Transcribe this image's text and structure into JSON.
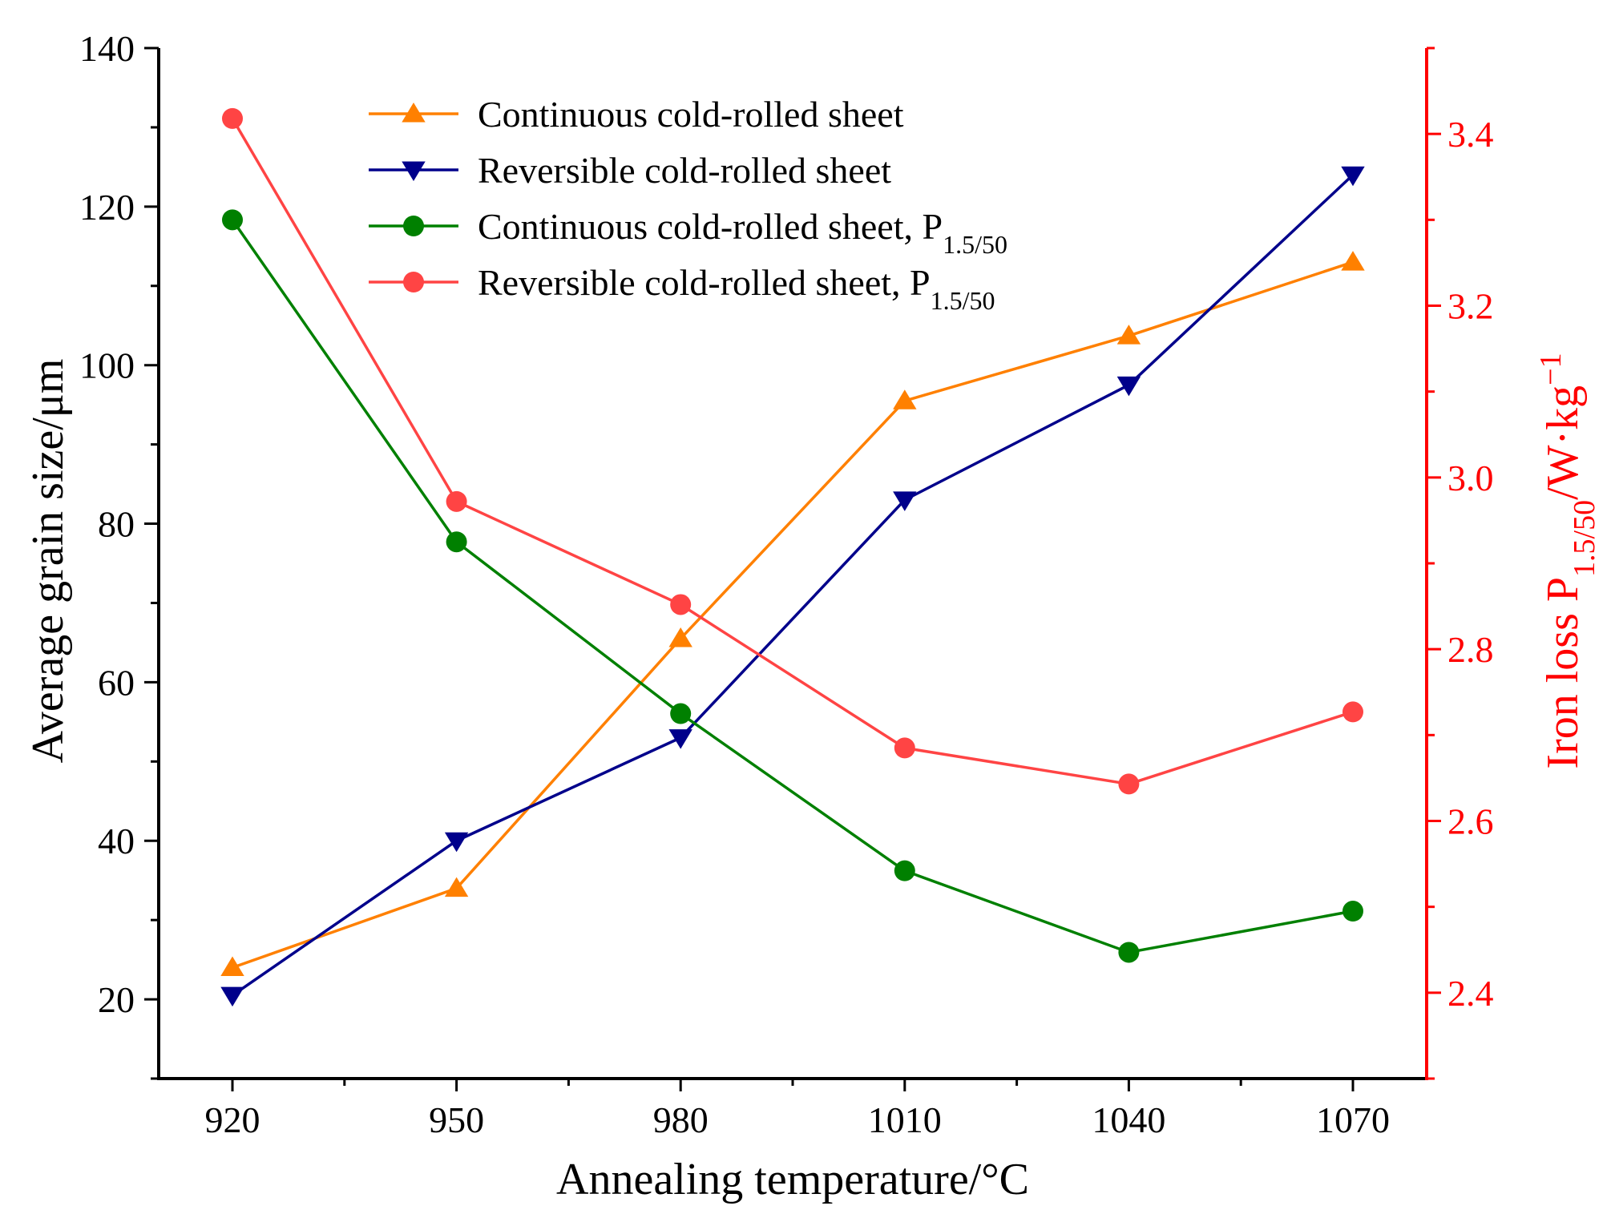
{
  "chart_data": {
    "type": "line",
    "x": [
      920,
      950,
      980,
      1010,
      1040,
      1070
    ],
    "xlabel": "Annealing temperature/°C",
    "ylabel_left": "Average grain size/μm",
    "ylabel_right": {
      "prefix": "Iron loss P",
      "sub": "1.5/50",
      "mid": "/W·kg",
      "sup": "−1"
    },
    "ylim_left": [
      10,
      140
    ],
    "ylim_right": [
      2.3,
      3.5
    ],
    "left_ticks": [
      20,
      40,
      60,
      80,
      100,
      120,
      140
    ],
    "right_ticks": [
      2.4,
      2.6,
      2.8,
      3.0,
      3.2,
      3.4
    ],
    "right_tick_labels": [
      "2.4",
      "2.6",
      "2.8",
      "3.0",
      "3.2",
      "3.4"
    ],
    "legend_position": "top-center",
    "series": [
      {
        "name": "Continuous cold-rolled sheet",
        "sub": "",
        "axis": "left",
        "marker": "triangle-up",
        "color": "#FF8000",
        "values": [
          24,
          34,
          65.5,
          95.5,
          103.7,
          113
        ]
      },
      {
        "name": "Reversible cold-rolled sheet",
        "sub": "",
        "axis": "left",
        "marker": "triangle-down",
        "color": "#00008B",
        "values": [
          20.5,
          40,
          53,
          83,
          97.5,
          124
        ]
      },
      {
        "name": "Continuous cold-rolled sheet, P",
        "sub": "1.5/50",
        "axis": "right",
        "marker": "circle",
        "color": "#008000",
        "values": [
          3.3,
          2.925,
          2.725,
          2.542,
          2.447,
          2.495
        ]
      },
      {
        "name": "Reversible cold-rolled sheet, P",
        "sub": "1.5/50",
        "axis": "right",
        "marker": "circle",
        "color": "#FF4444",
        "values": [
          3.418,
          2.972,
          2.852,
          2.685,
          2.643,
          2.727
        ]
      }
    ]
  },
  "colors": {
    "axis_left": "#000000",
    "axis_right": "#FF0000"
  }
}
